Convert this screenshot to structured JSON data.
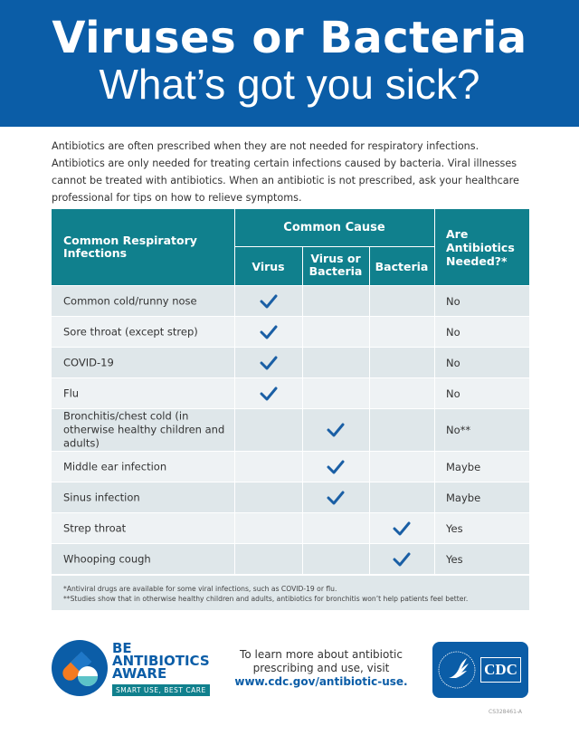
{
  "banner": {
    "title": "Viruses or Bacteria",
    "subtitle": "What’s got you sick?"
  },
  "intro": "Antibiotics are often prescribed when they are not needed for respiratory infections. Antibiotics are only needed for treating certain infections caused by bacteria. Viral illnesses cannot be treated with antibiotics. When an antibiotic is not prescribed, ask your healthcare professional for tips on how to relieve symptoms.",
  "table": {
    "headers": {
      "infection": "Common Respiratory Infections",
      "cause": "Common Cause",
      "virus": "Virus",
      "virus_or_bacteria": "Virus or Bacteria",
      "bacteria": "Bacteria",
      "needed": "Are Antibiotics Needed?*"
    },
    "rows": [
      {
        "name": "Common cold/runny nose",
        "cause": "virus",
        "needed": "No"
      },
      {
        "name": "Sore throat (except strep)",
        "cause": "virus",
        "needed": "No"
      },
      {
        "name": "COVID-19",
        "cause": "virus",
        "needed": "No"
      },
      {
        "name": "Flu",
        "cause": "virus",
        "needed": "No"
      },
      {
        "name": "Bronchitis/chest cold (in otherwise healthy children and adults)",
        "cause": "virus_or_bacteria",
        "needed": "No**"
      },
      {
        "name": "Middle ear infection",
        "cause": "virus_or_bacteria",
        "needed": "Maybe"
      },
      {
        "name": "Sinus infection",
        "cause": "virus_or_bacteria",
        "needed": "Maybe"
      },
      {
        "name": "Strep throat",
        "cause": "bacteria",
        "needed": "Yes"
      },
      {
        "name": "Whooping cough",
        "cause": "bacteria",
        "needed": "Yes"
      }
    ],
    "footnote1": "*Antiviral drugs are available for some viral infections, such as COVID-19 or flu.",
    "footnote2": "**Studies show that in otherwise healthy children and adults, antibiotics for bronchitis won’t help patients feel better."
  },
  "footer": {
    "baa_logo": {
      "line1": "BE",
      "line2": "ANTIBIOTICS",
      "line3": "AWARE",
      "tagline": "SMART USE, BEST CARE"
    },
    "learn_line1": "To learn more about antibiotic",
    "learn_line2": "prescribing and use, visit",
    "url": "www.cdc.gov/antibiotic-use.",
    "cdc_logo": "CDC",
    "code": "CS328461-A"
  },
  "colors": {
    "banner": "#0b5da7",
    "table_header": "#10808d",
    "check": "#1a5fa5",
    "row_a": "#dfe7ea",
    "row_b": "#eef2f4"
  }
}
